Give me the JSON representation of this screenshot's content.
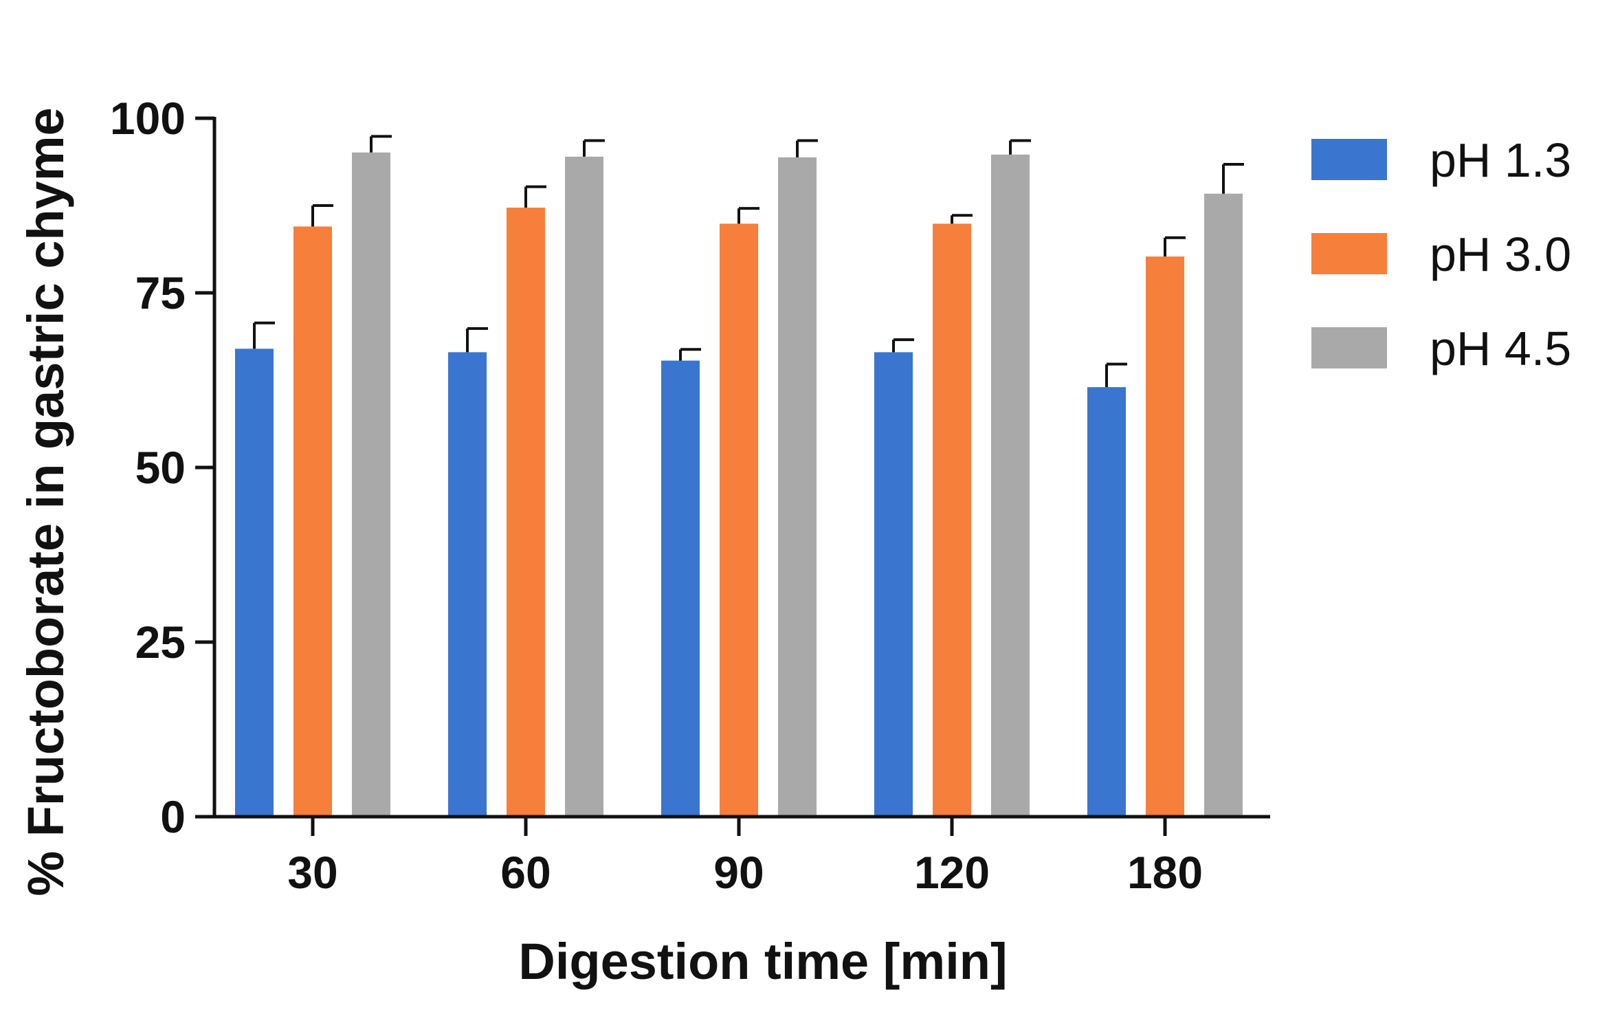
{
  "chart_data": {
    "type": "bar",
    "title": "",
    "xlabel": "Digestion time [min]",
    "ylabel": "% Fructoborate in gastric chyme",
    "categories": [
      "30",
      "60",
      "90",
      "120",
      "180"
    ],
    "ylim": [
      0,
      100
    ],
    "yticks": [
      "0",
      "25",
      "50",
      "75",
      "100"
    ],
    "legend_position": "right",
    "series": [
      {
        "name": "pH 1.3",
        "color": "#3a75cf",
        "values": [
          67,
          66.5,
          65.3,
          66.5,
          61.5
        ],
        "errors": [
          3.7,
          3.4,
          1.6,
          1.8,
          3.3
        ]
      },
      {
        "name": "pH 3.0",
        "color": "#f57f3b",
        "values": [
          84.5,
          87.2,
          84.9,
          84.9,
          80.2
        ],
        "errors": [
          3.0,
          3.0,
          2.2,
          1.2,
          2.7
        ]
      },
      {
        "name": "pH 4.5",
        "color": "#a9a9a9",
        "values": [
          95.1,
          94.5,
          94.4,
          94.8,
          89.2
        ],
        "errors": [
          2.3,
          2.3,
          2.4,
          2.0,
          4.2
        ]
      }
    ]
  }
}
